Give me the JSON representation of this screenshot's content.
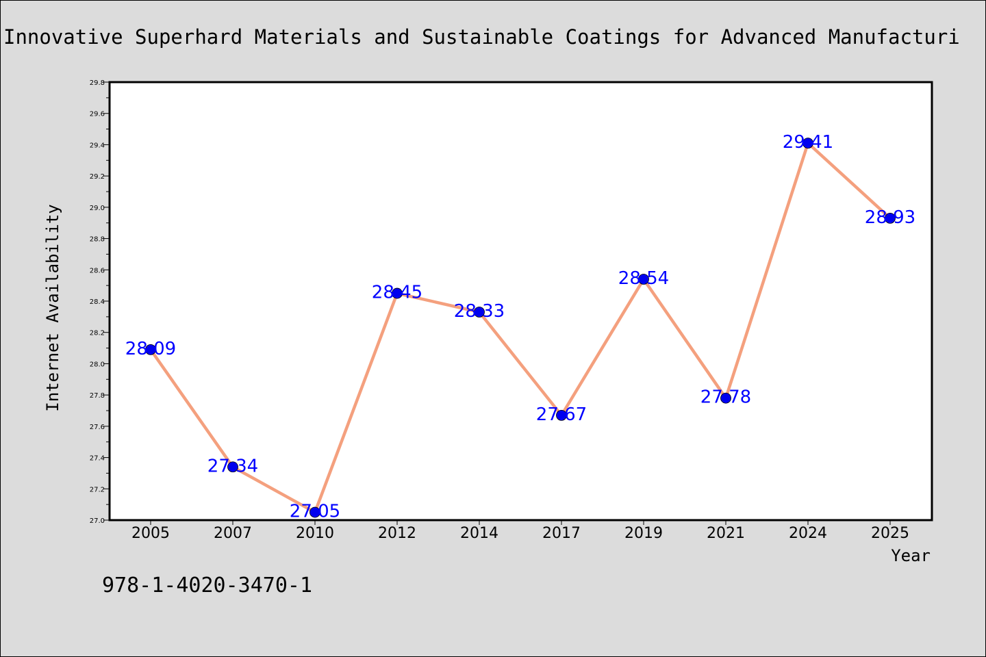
{
  "chart_data": {
    "type": "line",
    "title": "Innovative Superhard Materials and Sustainable Coatings for Advanced Manufacturi",
    "xlabel": "Year",
    "ylabel": "Internet Availability",
    "categories": [
      "2005",
      "2007",
      "2010",
      "2012",
      "2014",
      "2017",
      "2019",
      "2021",
      "2024",
      "2025"
    ],
    "values": [
      28.09,
      27.34,
      27.05,
      28.45,
      28.33,
      27.67,
      28.54,
      27.78,
      29.41,
      28.93
    ],
    "data_labels": [
      "28.09",
      "27.34",
      "27.05",
      "28.45",
      "28.33",
      "27.67",
      "28.54",
      "27.78",
      "29.41",
      "28.93"
    ],
    "ylim": [
      27.0,
      29.8
    ],
    "yticks": [
      "27.0",
      "27.2",
      "27.4",
      "27.6",
      "27.8",
      "28.0",
      "28.2",
      "28.4",
      "28.6",
      "28.8",
      "29.0",
      "29.2",
      "29.4",
      "29.6",
      "29.8"
    ],
    "grid": false,
    "legend": "none",
    "colors": {
      "line": "#f4a07e",
      "marker": "#0000ee",
      "label": "#0000ff",
      "plot_background": "#ffffff",
      "figure_background": "#dcdcdc"
    }
  },
  "footer": {
    "isbn": "978-1-4020-3470-1"
  }
}
